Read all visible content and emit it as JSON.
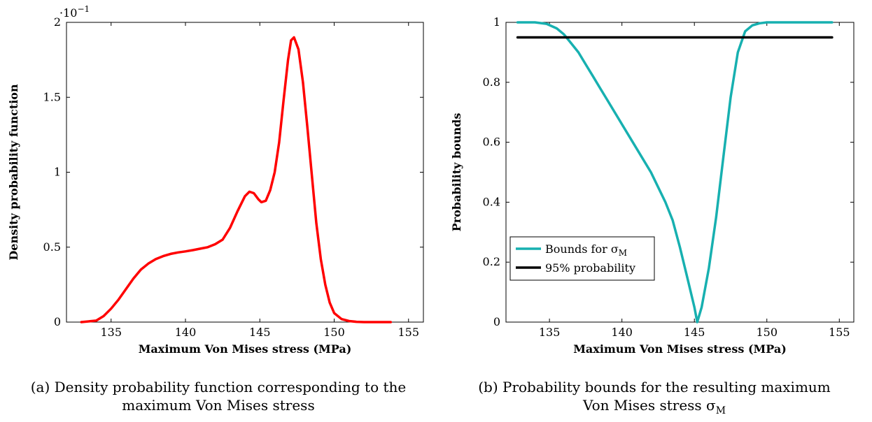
{
  "chart_data": [
    {
      "type": "line",
      "xlabel": "Maximum Von Mises stress (MPa)",
      "ylabel": "Density probability function",
      "multiplier_base": "·10",
      "multiplier_exp": "−1",
      "xlim": [
        132.0,
        156.0
      ],
      "ylim": [
        0,
        2
      ],
      "xticks": [
        135,
        140,
        145,
        150,
        155
      ],
      "xtick_labels": [
        "135",
        "140",
        "145",
        "150",
        "155"
      ],
      "yticks": [
        0,
        0.5,
        1,
        1.5,
        2
      ],
      "ytick_labels": [
        "0",
        "0.5",
        "1",
        "1.5",
        "2"
      ],
      "caption_line1": "(a) Density probability function corresponding to the",
      "caption_line2": "maximum Von Mises stress",
      "series": [
        {
          "color": "#ff0000",
          "x": [
            133.0,
            134.0,
            134.5,
            135.0,
            135.5,
            136.0,
            136.5,
            137.0,
            137.5,
            138.0,
            138.5,
            139.0,
            139.5,
            140.0,
            140.5,
            141.0,
            141.5,
            142.0,
            142.5,
            143.0,
            143.5,
            144.0,
            144.3,
            144.6,
            144.9,
            145.1,
            145.4,
            145.7,
            146.0,
            146.3,
            146.6,
            146.9,
            147.1,
            147.3,
            147.6,
            147.9,
            148.2,
            148.5,
            148.8,
            149.1,
            149.4,
            149.7,
            150.0,
            150.5,
            151.0,
            151.5,
            152.0,
            153.0,
            153.8
          ],
          "y": [
            0.0,
            0.01,
            0.04,
            0.09,
            0.15,
            0.22,
            0.29,
            0.35,
            0.39,
            0.42,
            0.44,
            0.455,
            0.465,
            0.472,
            0.48,
            0.49,
            0.5,
            0.52,
            0.55,
            0.63,
            0.74,
            0.84,
            0.87,
            0.86,
            0.82,
            0.8,
            0.81,
            0.88,
            1.0,
            1.2,
            1.48,
            1.75,
            1.88,
            1.9,
            1.82,
            1.6,
            1.3,
            0.98,
            0.66,
            0.42,
            0.25,
            0.13,
            0.06,
            0.02,
            0.007,
            0.002,
            0.0,
            0.0,
            0.0
          ]
        }
      ]
    },
    {
      "type": "line",
      "xlabel": "Maximum Von Mises stress (MPa)",
      "ylabel": "Probability bounds",
      "xlim": [
        132.0,
        156.0
      ],
      "ylim": [
        0,
        1
      ],
      "xticks": [
        135,
        140,
        145,
        150,
        155
      ],
      "xtick_labels": [
        "135",
        "140",
        "145",
        "150",
        "155"
      ],
      "yticks": [
        0,
        0.2,
        0.4,
        0.6,
        0.8,
        1
      ],
      "ytick_labels": [
        "0",
        "0.2",
        "0.4",
        "0.6",
        "0.8",
        "1"
      ],
      "legend_position": "bottom-left",
      "caption_line1": "(b) Probability bounds for the resulting maximum",
      "caption_line2": "Von Mises stress σ",
      "caption_sub": "M",
      "series": [
        {
          "name": "Bounds for σ",
          "name_sub": "M",
          "color": "#17b0b0",
          "x": [
            132.8,
            134.0,
            134.8,
            135.5,
            136.0,
            136.5,
            137.0,
            137.5,
            138.0,
            138.5,
            139.0,
            140.0,
            141.0,
            142.0,
            143.0,
            143.5,
            144.0,
            144.5,
            145.0,
            145.2,
            145.5,
            146.0,
            146.5,
            147.0,
            147.5,
            148.0,
            148.5,
            149.0,
            149.5,
            150.0,
            150.5,
            151.5,
            154.5
          ],
          "y": [
            1.0,
            1.0,
            0.995,
            0.98,
            0.96,
            0.93,
            0.9,
            0.86,
            0.82,
            0.78,
            0.74,
            0.66,
            0.58,
            0.5,
            0.4,
            0.34,
            0.25,
            0.15,
            0.05,
            0.0,
            0.05,
            0.18,
            0.35,
            0.55,
            0.75,
            0.9,
            0.97,
            0.99,
            0.997,
            1.0,
            1.0,
            1.0,
            1.0
          ]
        },
        {
          "name": "95% probability",
          "color": "#000000",
          "x": [
            132.8,
            154.5
          ],
          "y": [
            0.95,
            0.95
          ]
        }
      ]
    }
  ]
}
